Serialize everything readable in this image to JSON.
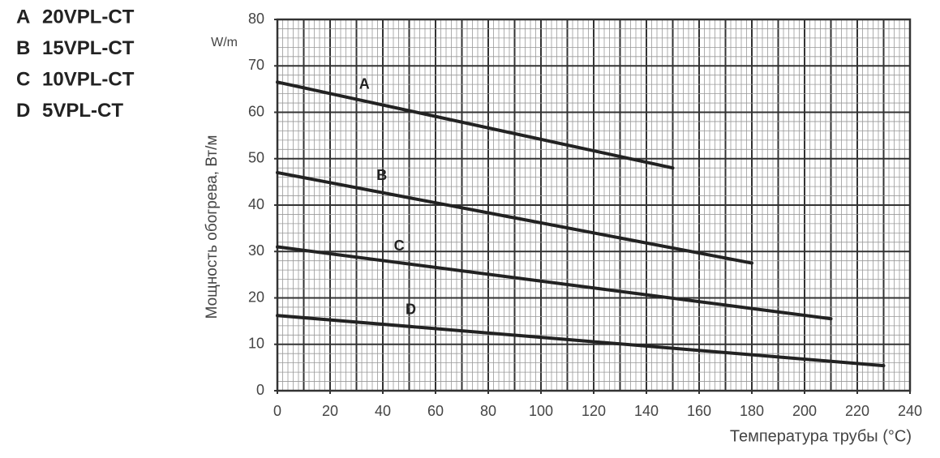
{
  "chart_data": {
    "type": "line",
    "y_label": "Мощность обогрева, Вт/м",
    "y_unit": "W/m",
    "x_label": "Температура трубы (°C)",
    "xlim": [
      0,
      240
    ],
    "xticks": [
      0,
      20,
      40,
      60,
      80,
      100,
      120,
      140,
      160,
      180,
      200,
      220,
      240
    ],
    "ylim": [
      0,
      80
    ],
    "yticks": [
      0,
      10,
      20,
      30,
      40,
      50,
      60,
      70,
      80
    ],
    "grid": true,
    "major_grid_step": 10,
    "minor_grid_step": 2,
    "series": [
      {
        "name": "A",
        "label": "20VPL-CT",
        "color": "#222222",
        "x": [
          0,
          150
        ],
        "values": [
          66.5,
          48
        ]
      },
      {
        "name": "B",
        "label": "15VPL-CT",
        "color": "#222222",
        "x": [
          0,
          180
        ],
        "values": [
          47,
          27.5
        ]
      },
      {
        "name": "C",
        "label": "10VPL-CT",
        "color": "#222222",
        "x": [
          0,
          210
        ],
        "values": [
          31,
          15.5
        ]
      },
      {
        "name": "D",
        "label": "5VPL-CT",
        "color": "#222222",
        "x": [
          0,
          230
        ],
        "values": [
          16.2,
          5.4
        ]
      }
    ]
  }
}
